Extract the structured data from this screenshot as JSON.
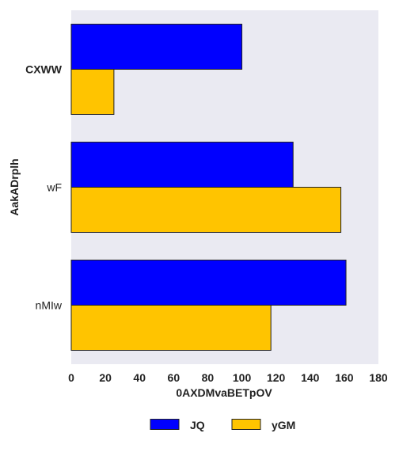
{
  "chart_data": {
    "type": "bar",
    "orientation": "horizontal",
    "categories": [
      "CXWW",
      "wF",
      "nMIw"
    ],
    "bold_categories": [
      "CXWW"
    ],
    "series": [
      {
        "name": "JQ",
        "color": "#0000ff",
        "values": [
          100,
          130,
          161
        ]
      },
      {
        "name": "yGM",
        "color": "#ffc400",
        "values": [
          25,
          158,
          117
        ]
      }
    ],
    "xlabel": "0AXDMvaBETpOV",
    "ylabel": "AakADrplh",
    "xlim": [
      0,
      180
    ],
    "xticks": [
      "0",
      "20",
      "40",
      "60",
      "80",
      "100",
      "120",
      "140",
      "160",
      "180"
    ],
    "grid": false,
    "plot_background": "#eaeaf2",
    "legend_position": "bottom-center"
  }
}
